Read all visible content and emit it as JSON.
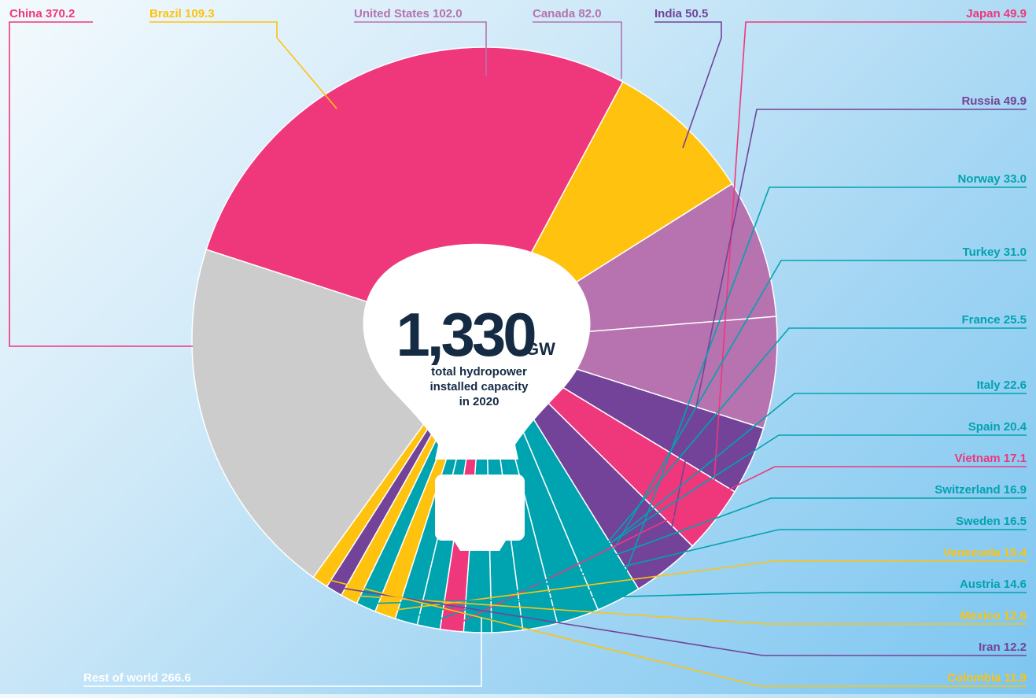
{
  "center": {
    "value": "1,330",
    "unit": "GW",
    "line1": "total hydropower",
    "line2": "installed capacity",
    "line3": "in 2020"
  },
  "colors": {
    "pink": "#ef377b",
    "yellow": "#ffc20e",
    "mauve": "#b673af",
    "purple": "#724399",
    "teal": "#00a3b0",
    "grey": "#cccccc",
    "navy": "#152b44"
  },
  "chart_data": {
    "type": "pie",
    "unit": "GW",
    "total": 1330,
    "slices": [
      {
        "label": "China",
        "value_text": "370.2",
        "value": 370.2,
        "color": "#ef377b"
      },
      {
        "label": "Brazil",
        "value_text": "109.3",
        "value": 109.3,
        "color": "#ffc20e"
      },
      {
        "label": "United States",
        "value_text": "102.0",
        "value": 102.0,
        "color": "#b673af"
      },
      {
        "label": "Canada",
        "value_text": "82.0",
        "value": 82.0,
        "color": "#b673af"
      },
      {
        "label": "India",
        "value_text": "50.5",
        "value": 50.5,
        "color": "#724399"
      },
      {
        "label": "Japan",
        "value_text": "49.9",
        "value": 49.9,
        "color": "#ef377b"
      },
      {
        "label": "Russia",
        "value_text": "49.9",
        "value": 49.9,
        "color": "#724399"
      },
      {
        "label": "Norway",
        "value_text": "33.0",
        "value": 33.0,
        "color": "#00a3b0"
      },
      {
        "label": "Turkey ",
        "value_text": "31.0",
        "value": 31.0,
        "color": "#00a3b0"
      },
      {
        "label": "France",
        "value_text": "25.5",
        "value": 25.5,
        "color": "#00a3b0"
      },
      {
        "label": "Italy",
        "value_text": "22.6",
        "value": 22.6,
        "color": "#00a3b0"
      },
      {
        "label": "Spain",
        "value_text": "20.4",
        "value": 20.4,
        "color": "#00a3b0"
      },
      {
        "label": "Vietnam",
        "value_text": "17.1",
        "value": 17.1,
        "color": "#ef377b"
      },
      {
        "label": "Switzerland",
        "value_text": "16.9",
        "value": 16.9,
        "color": "#00a3b0"
      },
      {
        "label": "Sweden",
        "value_text": "16.5",
        "value": 16.5,
        "color": "#00a3b0"
      },
      {
        "label": "Venezuela",
        "value_text": "15.4",
        "value": 15.4,
        "color": "#ffc20e"
      },
      {
        "label": "Austria",
        "value_text": "14.6",
        "value": 14.6,
        "color": "#00a3b0"
      },
      {
        "label": "Mexico",
        "value_text": "12.6",
        "value": 12.6,
        "color": "#ffc20e"
      },
      {
        "label": "Iran",
        "value_text": "12.2",
        "value": 12.2,
        "color": "#724399"
      },
      {
        "label": "Colombia",
        "value_text": "11.9",
        "value": 11.9,
        "color": "#ffc20e"
      },
      {
        "label": "Rest of world",
        "value_text": "266.6",
        "value": 266.6,
        "color": "#cccccc"
      }
    ]
  }
}
